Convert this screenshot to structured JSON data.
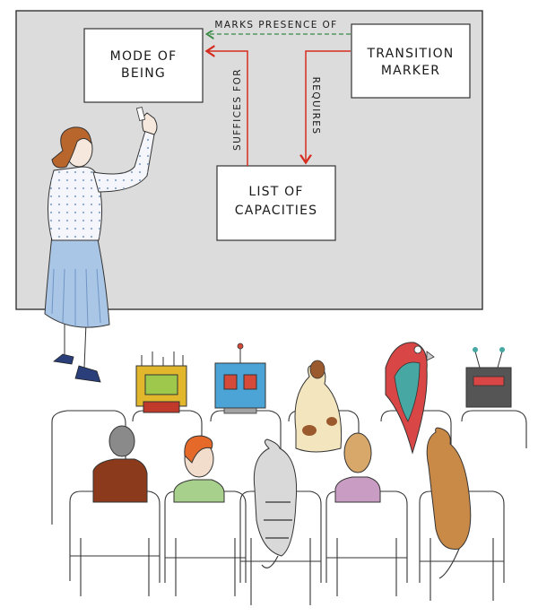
{
  "diagram": {
    "nodes": [
      {
        "id": "mode",
        "lines": [
          "MODE OF",
          "BEING"
        ]
      },
      {
        "id": "transition",
        "lines": [
          "TRANSITION",
          "MARKER"
        ]
      },
      {
        "id": "capacities",
        "lines": [
          "LIST OF",
          "CAPACITIES"
        ]
      }
    ],
    "edges": [
      {
        "from": "transition",
        "to": "mode",
        "label": "MARKS PRESENCE OF",
        "style": "dashed",
        "color": "#3b8a45"
      },
      {
        "from": "capacities",
        "to": "mode",
        "label": "SUFFICES FOR",
        "style": "solid",
        "color": "#d62c1f"
      },
      {
        "from": "transition",
        "to": "capacities",
        "label": "REQUIRES",
        "style": "solid",
        "color": "#d62c1f"
      }
    ]
  },
  "colors": {
    "board": "#dcdcdd",
    "box": "#ffffff",
    "red_arrow": "#d62c1f",
    "green_arrow": "#3b8a45"
  }
}
